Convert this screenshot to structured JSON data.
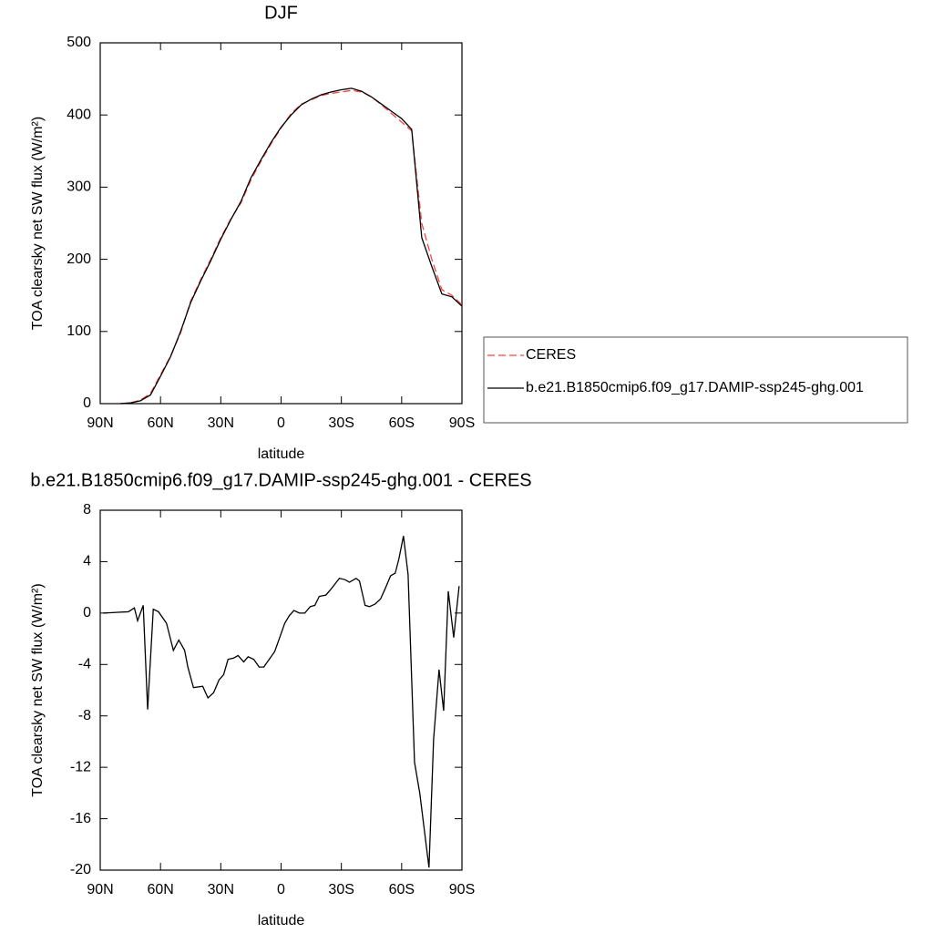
{
  "chart_data": [
    {
      "type": "line",
      "title": "DJF",
      "xlabel": "latitude",
      "ylabel": "TOA clearsky net SW flux (W/m²)",
      "x": [
        80,
        75,
        70,
        65,
        60,
        55,
        50,
        45,
        40,
        35,
        30,
        25,
        20,
        15,
        10,
        5,
        0,
        -5,
        -10,
        -15,
        -20,
        -25,
        -30,
        -35,
        -40,
        -45,
        -50,
        -55,
        -60,
        -65,
        -70,
        -75,
        -80,
        -85,
        -90
      ],
      "series": [
        {
          "name": "CERES",
          "color": "#ff4040",
          "line_style": "dashed",
          "values": [
            0,
            1,
            5,
            14,
            40,
            66,
            98,
            142,
            172,
            200,
            230,
            256,
            278,
            310,
            336,
            360,
            382,
            402,
            415,
            421,
            427,
            430,
            432,
            434,
            432,
            425,
            414,
            402,
            390,
            378,
            250,
            200,
            158,
            150,
            137
          ]
        },
        {
          "name": "b.e21.B1850cmip6.f09_g17.DAMIP-ssp245-ghg.001",
          "color": "#000000",
          "line_style": "solid",
          "values": [
            0,
            1,
            4,
            12,
            38,
            65,
            100,
            140,
            170,
            198,
            228,
            255,
            280,
            313,
            338,
            362,
            383,
            400,
            414,
            422,
            428,
            432,
            435,
            437,
            433,
            425,
            415,
            405,
            395,
            380,
            230,
            190,
            152,
            148,
            135
          ]
        }
      ],
      "xlim": [
        90,
        -90
      ],
      "xticks": [
        {
          "value": 90,
          "label": "90N"
        },
        {
          "value": 60,
          "label": "60N"
        },
        {
          "value": 30,
          "label": "30N"
        },
        0,
        {
          "value": -30,
          "label": "30S"
        },
        {
          "value": -60,
          "label": "60S"
        },
        {
          "value": -90,
          "label": "90S"
        }
      ],
      "ylim": [
        0,
        500
      ],
      "yticks": [
        0,
        100,
        200,
        300,
        400,
        500
      ],
      "legend": "right"
    },
    {
      "type": "line",
      "title": "b.e21.B1850cmip6.f09_g17.DAMIP-ssp245-ghg.001 - CERES",
      "xlabel": "latitude",
      "ylabel": "TOA clearsky net SW flux (W/m²)",
      "x": [
        88.6,
        76,
        73,
        71.4,
        68.6,
        66.4,
        63.6,
        61,
        57,
        53.6,
        50.9,
        48,
        46.4,
        43.6,
        39,
        36.4,
        33.6,
        30.9,
        28.6,
        26.4,
        23.6,
        21.4,
        18.6,
        16.4,
        13.6,
        10.9,
        8.6,
        5.9,
        3.2,
        0.9,
        -1.8,
        -4.1,
        -6.4,
        -9.1,
        -11.8,
        -14.5,
        -16.8,
        -19,
        -22.3,
        -24.5,
        -29,
        -31.8,
        -34,
        -37.3,
        -39,
        -41.8,
        -44,
        -46.8,
        -49.5,
        -51.8,
        -54.5,
        -56.8,
        -58.6,
        -60.9,
        -63.2,
        -66.4,
        -69,
        -73.6,
        -75.9,
        -78.6,
        -80.9,
        -83.2,
        -85.9,
        -88.6
      ],
      "values": [
        0,
        0.1,
        0.4,
        -0.6,
        0.6,
        -7.5,
        0.3,
        0.1,
        -0.8,
        -2.9,
        -2.1,
        -2.9,
        -4.2,
        -5.8,
        -5.7,
        -6.6,
        -6.2,
        -5.2,
        -4.8,
        -3.6,
        -3.5,
        -3.3,
        -3.8,
        -3.4,
        -3.6,
        -4.2,
        -4.2,
        -3.6,
        -3,
        -2,
        -0.8,
        -0.2,
        0.2,
        0,
        0,
        0.5,
        0.6,
        1.3,
        1.4,
        1.8,
        2.7,
        2.6,
        2.4,
        2.7,
        2.5,
        0.6,
        0.5,
        0.7,
        1.1,
        1.9,
        2.9,
        3.1,
        4.2,
        6,
        3,
        -11.6,
        -14,
        -19.8,
        -9.8,
        -4.4,
        -7.6,
        1.7,
        -1.9,
        2.1
      ],
      "color": "#000000",
      "xlim": [
        90,
        -90
      ],
      "xticks": [
        {
          "value": 90,
          "label": "90N"
        },
        {
          "value": 60,
          "label": "60N"
        },
        {
          "value": 30,
          "label": "30N"
        },
        0,
        {
          "value": -30,
          "label": "30S"
        },
        {
          "value": -60,
          "label": "60S"
        },
        {
          "value": -90,
          "label": "90S"
        }
      ],
      "ylim": [
        -20,
        8
      ],
      "yticks": [
        -20,
        -16,
        -12,
        -8,
        -4,
        0,
        4,
        8
      ]
    }
  ]
}
